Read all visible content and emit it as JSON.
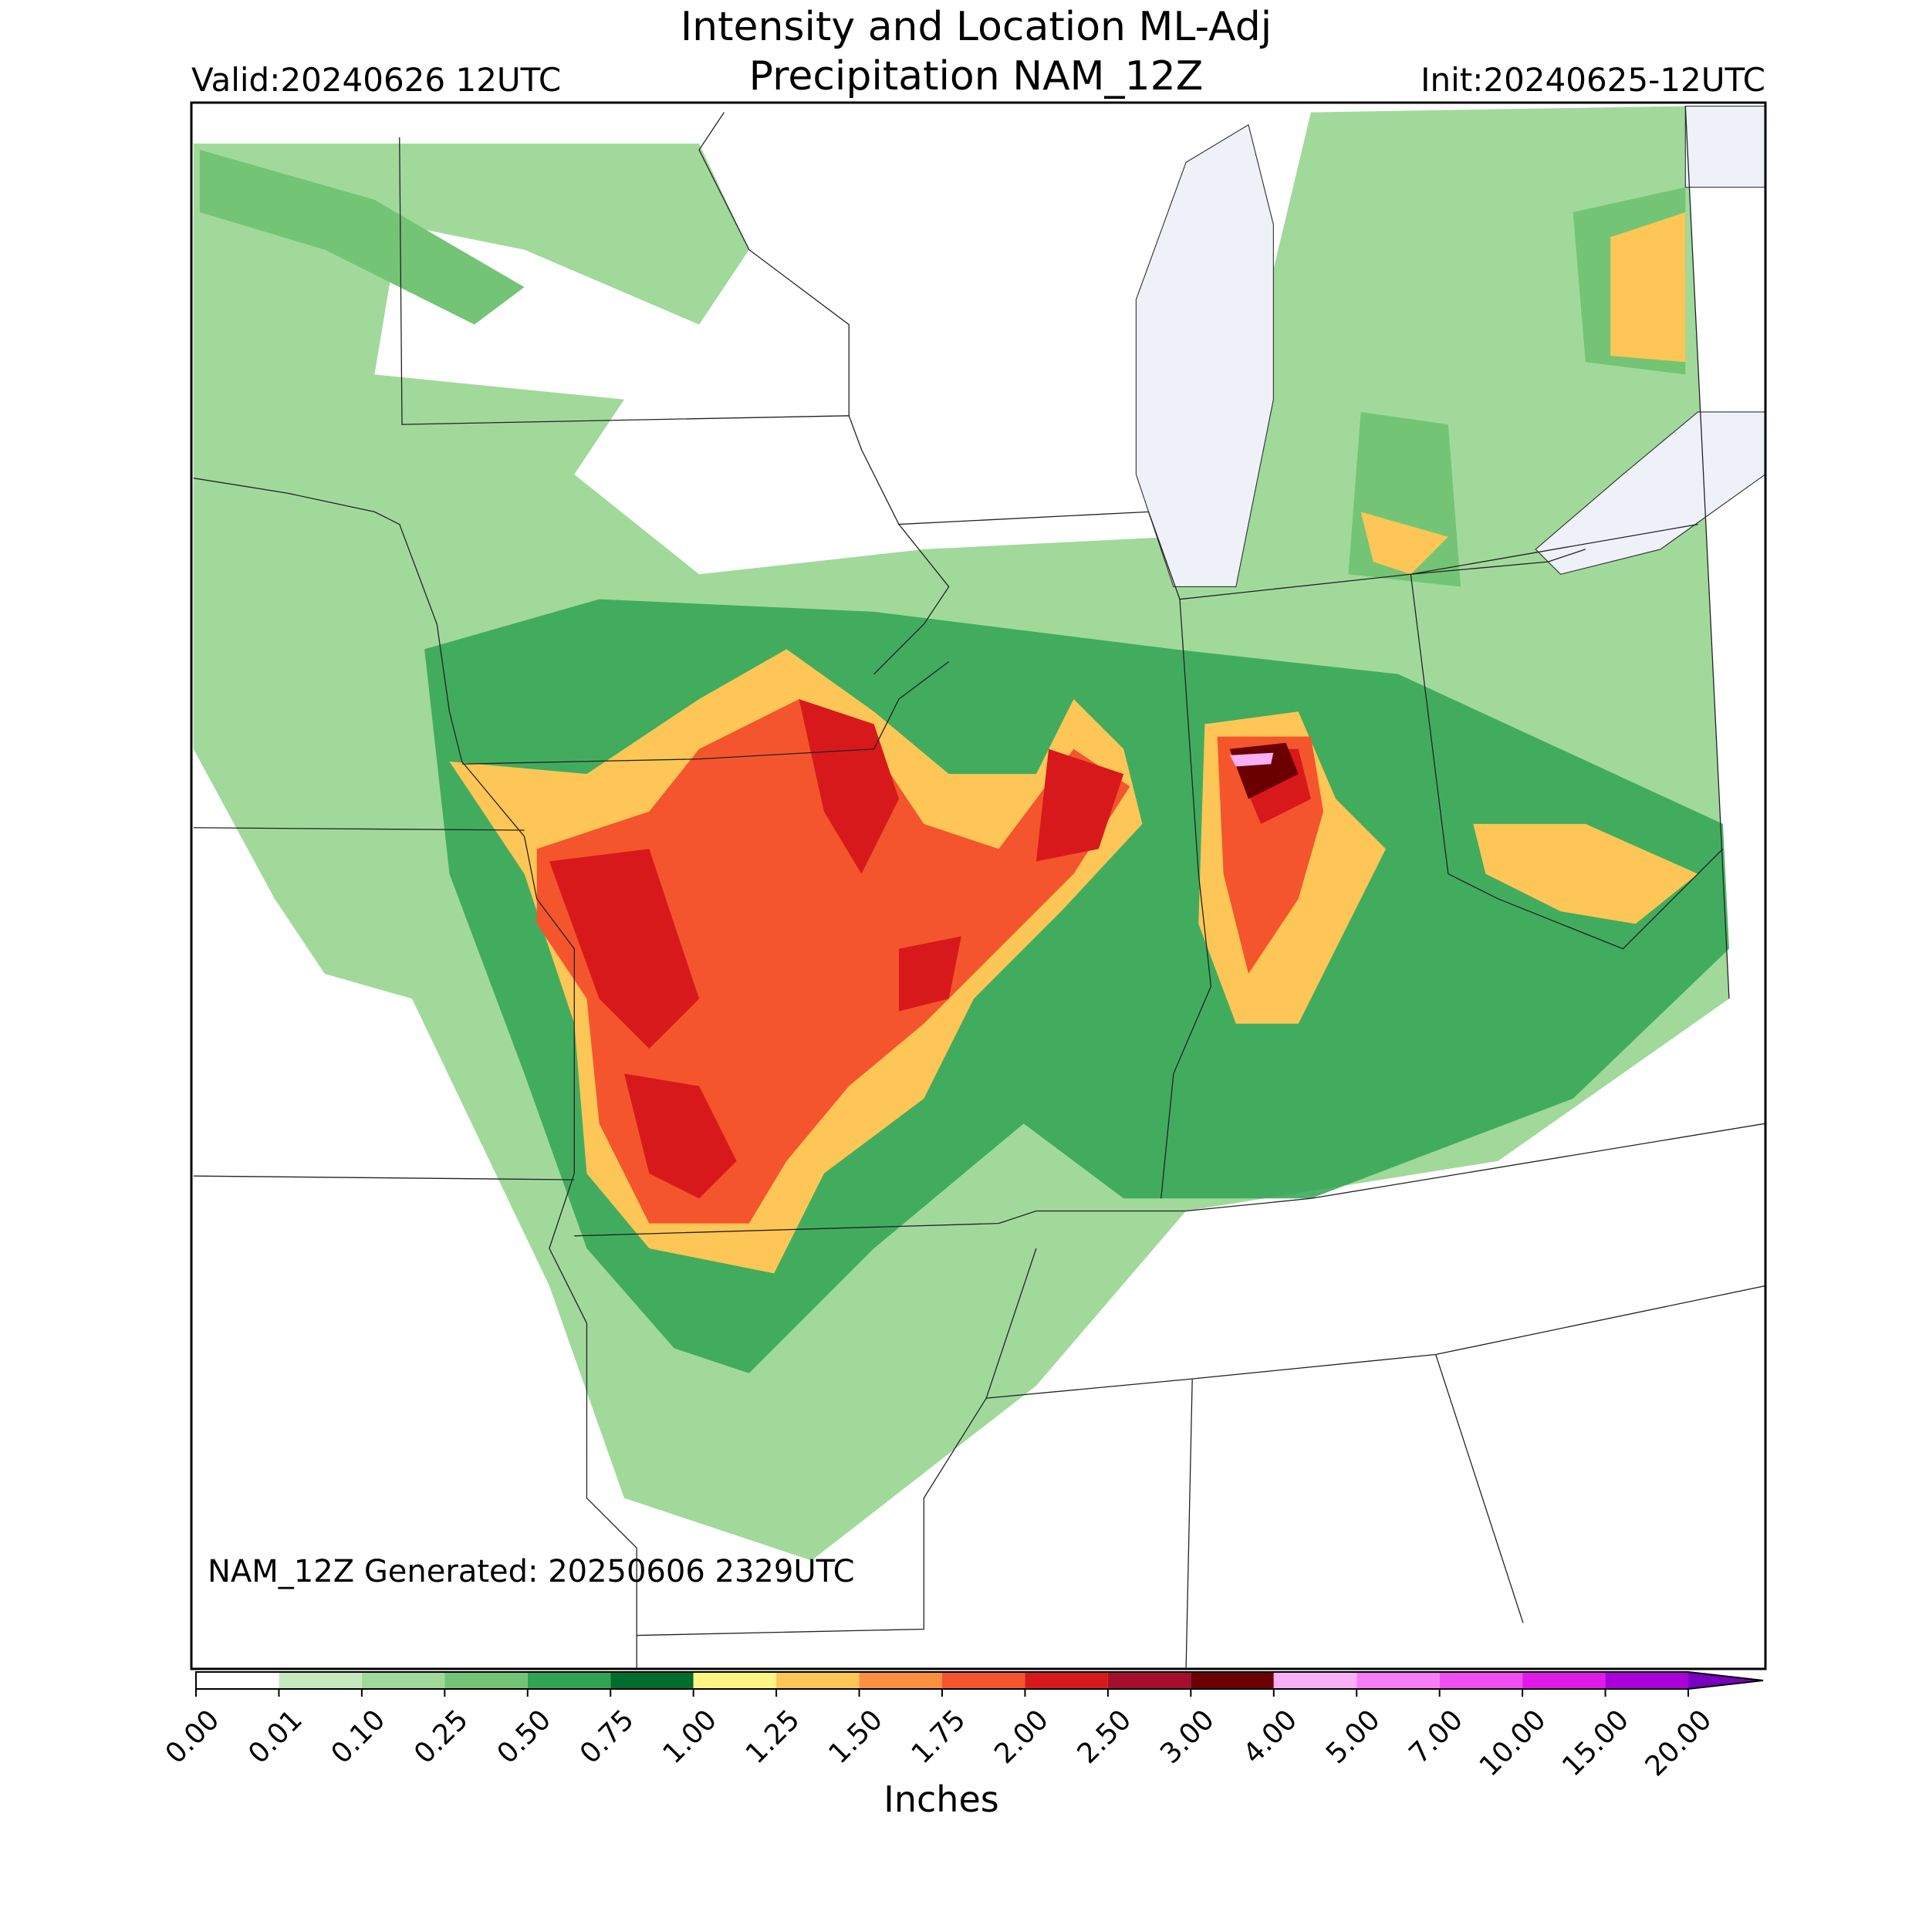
{
  "header": {
    "title_lines": [
      "Intensity and Location ML-Adj",
      "Precipitation NAM_12Z"
    ],
    "valid": "Valid:20240626 12UTC",
    "init": "Init:20240625-12UTC"
  },
  "footer": "NAM_12Z Generated: 20250606 2329UTC",
  "colorbar": {
    "label": "Inches",
    "ticks": [
      {
        "value": 0,
        "label": "0.00"
      },
      {
        "value": 0.01,
        "label": "0.01"
      },
      {
        "value": 0.1,
        "label": "0.10"
      },
      {
        "value": 0.25,
        "label": "0.25"
      },
      {
        "value": 0.5,
        "label": "0.50"
      },
      {
        "value": 0.75,
        "label": "0.75"
      },
      {
        "value": 1,
        "label": "1.00"
      },
      {
        "value": 1.25,
        "label": "1.25"
      },
      {
        "value": 1.5,
        "label": "1.50"
      },
      {
        "value": 1.75,
        "label": "1.75"
      },
      {
        "value": 2,
        "label": "2.00"
      },
      {
        "value": 2.5,
        "label": "2.50"
      },
      {
        "value": 3,
        "label": "3.00"
      },
      {
        "value": 4,
        "label": "4.00"
      },
      {
        "value": 5,
        "label": "5.00"
      },
      {
        "value": 7,
        "label": "7.00"
      },
      {
        "value": 10,
        "label": "10.00"
      },
      {
        "value": 15,
        "label": "15.00"
      },
      {
        "value": 20,
        "label": "20.00"
      }
    ],
    "colors": [
      "#ffffff",
      "#c7e9c0",
      "#a1d99b",
      "#74c476",
      "#31a354",
      "#006d2c",
      "#fff585",
      "#fdc656",
      "#fd9040",
      "#f4552d",
      "#d7191c",
      "#a50f2d",
      "#6b0000",
      "#f9b0f5",
      "#f77ef5",
      "#f04ef0",
      "#e01be8",
      "#ab00d8"
    ],
    "extend_color": "#7a00c0"
  }
}
